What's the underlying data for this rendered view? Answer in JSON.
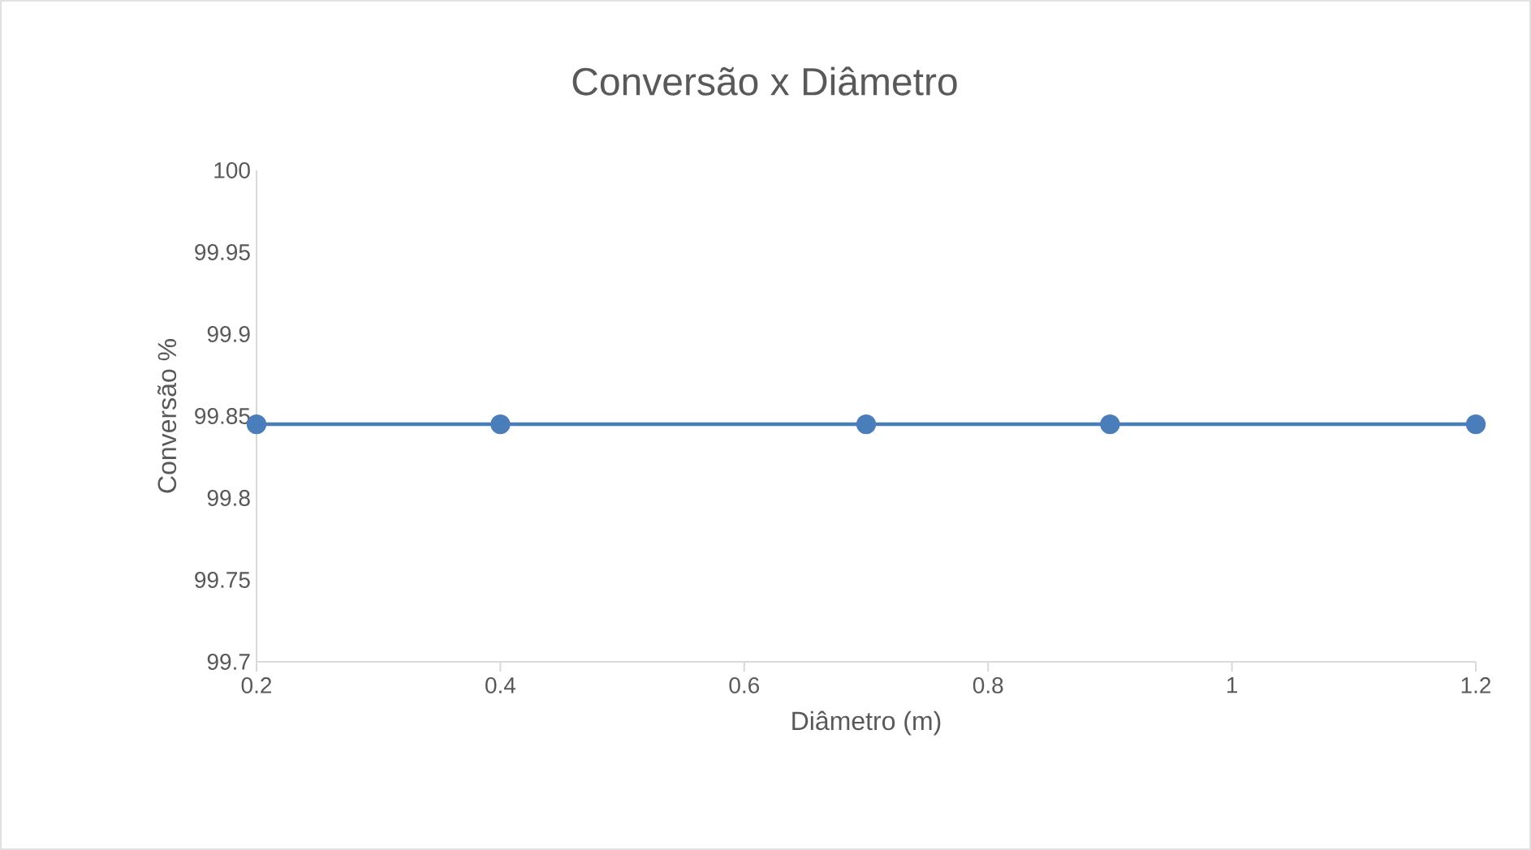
{
  "chart_data": {
    "type": "line",
    "title": "Conversão x Diâmetro",
    "xlabel": "Diâmetro (m)",
    "ylabel": "Conversão %",
    "x": [
      0.2,
      0.4,
      0.7,
      0.9,
      1.2
    ],
    "series": [
      {
        "color": "#4a7ebb",
        "values": [
          99.845,
          99.845,
          99.845,
          99.845,
          99.845
        ]
      }
    ],
    "xlim": [
      0.2,
      1.2
    ],
    "xticks": [
      0.2,
      0.4,
      0.6,
      0.8,
      1,
      1.2
    ],
    "ylim": [
      99.7,
      100
    ],
    "yticks": [
      99.7,
      99.75,
      99.8,
      99.85,
      99.9,
      99.95,
      100
    ],
    "marker": "circle",
    "line_style": "solid"
  }
}
